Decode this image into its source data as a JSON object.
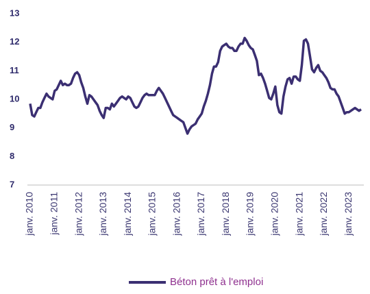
{
  "chart_data": {
    "type": "line",
    "categories": [
      "janv. 2010",
      null,
      null,
      null,
      null,
      null,
      null,
      null,
      null,
      null,
      null,
      null,
      "janv. 2011",
      null,
      null,
      null,
      null,
      null,
      null,
      null,
      null,
      null,
      null,
      null,
      "janv. 2012",
      null,
      null,
      null,
      null,
      null,
      null,
      null,
      null,
      null,
      null,
      null,
      "janv. 2013",
      null,
      null,
      null,
      null,
      null,
      null,
      null,
      null,
      null,
      null,
      null,
      "janv. 2014",
      null,
      null,
      null,
      null,
      null,
      null,
      null,
      null,
      null,
      null,
      null,
      "janv. 2015",
      null,
      null,
      null,
      null,
      null,
      null,
      null,
      null,
      null,
      null,
      null,
      "janv. 2016",
      null,
      null,
      null,
      null,
      null,
      null,
      null,
      null,
      null,
      null,
      null,
      "janv. 2017",
      null,
      null,
      null,
      null,
      null,
      null,
      null,
      null,
      null,
      null,
      null,
      "janv. 2018",
      null,
      null,
      null,
      null,
      null,
      null,
      null,
      null,
      null,
      null,
      null,
      "janv. 2019",
      null,
      null,
      null,
      null,
      null,
      null,
      null,
      null,
      null,
      null,
      null,
      "janv. 2020",
      null,
      null,
      null,
      null,
      null,
      null,
      null,
      null,
      null,
      null,
      null,
      "janv. 2021",
      null,
      null,
      null,
      null,
      null,
      null,
      null,
      null,
      null,
      null,
      null,
      "janv. 2022",
      null,
      null,
      null,
      null,
      null,
      null,
      null,
      null,
      null,
      null,
      null,
      "janv. 2023",
      null,
      null,
      null,
      null,
      null,
      null
    ],
    "series": [
      {
        "name": "Béton prêt à l'emploi",
        "color": "#3b2f72",
        "values": [
          9.85,
          9.45,
          9.4,
          9.55,
          9.7,
          9.7,
          9.9,
          10.05,
          10.2,
          10.1,
          10.05,
          10.0,
          10.3,
          10.35,
          10.5,
          10.65,
          10.5,
          10.55,
          10.5,
          10.5,
          10.55,
          10.75,
          10.9,
          10.95,
          10.85,
          10.6,
          10.4,
          10.1,
          9.85,
          10.15,
          10.1,
          10.0,
          9.9,
          9.8,
          9.6,
          9.45,
          9.35,
          9.7,
          9.7,
          9.65,
          9.85,
          9.75,
          9.85,
          9.95,
          10.05,
          10.1,
          10.05,
          10.0,
          10.1,
          10.05,
          9.9,
          9.75,
          9.7,
          9.75,
          9.9,
          10.05,
          10.15,
          10.2,
          10.15,
          10.15,
          10.15,
          10.15,
          10.3,
          10.4,
          10.3,
          10.2,
          10.05,
          9.9,
          9.75,
          9.6,
          9.45,
          9.4,
          9.35,
          9.3,
          9.25,
          9.2,
          9.0,
          8.8,
          8.95,
          9.05,
          9.1,
          9.15,
          9.3,
          9.4,
          9.5,
          9.75,
          9.95,
          10.2,
          10.5,
          10.9,
          11.15,
          11.15,
          11.3,
          11.7,
          11.85,
          11.9,
          11.95,
          11.85,
          11.8,
          11.8,
          11.7,
          11.7,
          11.85,
          11.95,
          11.95,
          12.15,
          12.05,
          11.9,
          11.8,
          11.75,
          11.55,
          11.35,
          10.85,
          10.9,
          10.75,
          10.55,
          10.3,
          10.05,
          10.0,
          10.2,
          10.45,
          9.8,
          9.55,
          9.5,
          10.1,
          10.45,
          10.7,
          10.75,
          10.55,
          10.8,
          10.8,
          10.7,
          10.65,
          11.2,
          12.05,
          12.1,
          11.95,
          11.5,
          11.05,
          10.95,
          11.1,
          11.2,
          11.0,
          10.95,
          10.85,
          10.75,
          10.6,
          10.4,
          10.35,
          10.35,
          10.2,
          10.1,
          9.9,
          9.7,
          9.5,
          9.55,
          9.55,
          9.6,
          9.65,
          9.7,
          9.65,
          9.6,
          9.65
        ]
      }
    ],
    "ylim": [
      7,
      13
    ],
    "yticks": [
      7,
      8,
      9,
      10,
      11,
      12,
      13
    ],
    "legend": "bottom"
  }
}
